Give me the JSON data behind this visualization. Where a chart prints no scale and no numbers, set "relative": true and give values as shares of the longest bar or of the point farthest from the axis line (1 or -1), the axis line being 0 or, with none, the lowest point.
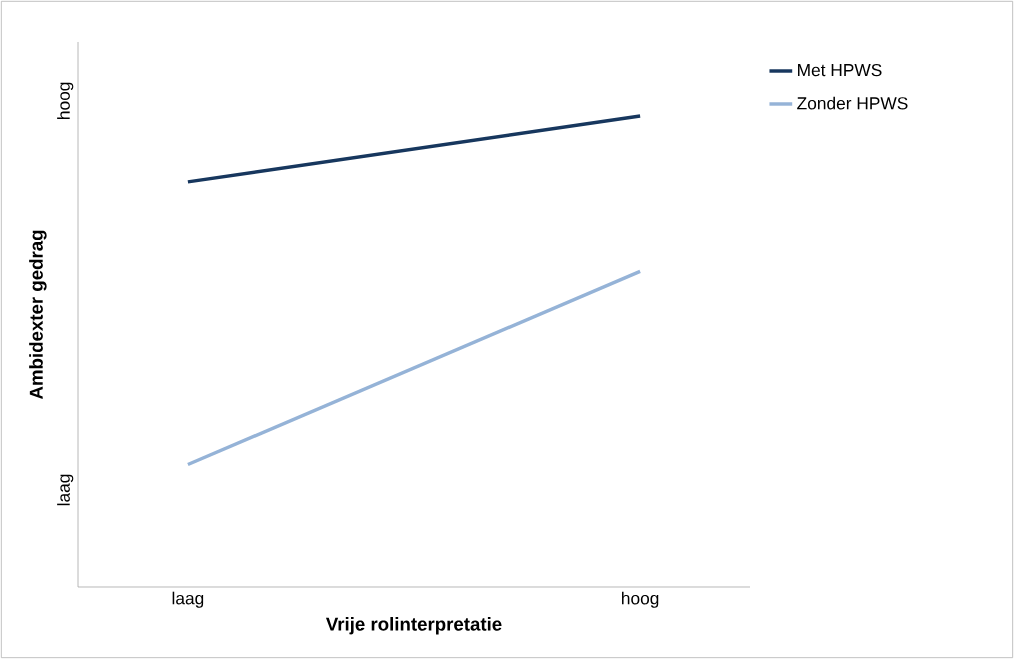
{
  "chart_data": {
    "type": "line",
    "xlabel": "Vrije rolinterpretatie",
    "ylabel": "Ambidexter gedrag",
    "categories": [
      "laag",
      "hoog"
    ],
    "series": [
      {
        "name": "Met HPWS",
        "color": "#17375e",
        "values": [
          0.86,
          1
        ]
      },
      {
        "name": "Zonder HPWS",
        "color": "#95b3d7",
        "values": [
          0.26,
          0.67
        ]
      }
    ],
    "relative": true,
    "annotations": [
      "laag",
      "hoog"
    ],
    "grid": false,
    "legend": "top right",
    "marker": "none",
    "line_style": "solid"
  }
}
